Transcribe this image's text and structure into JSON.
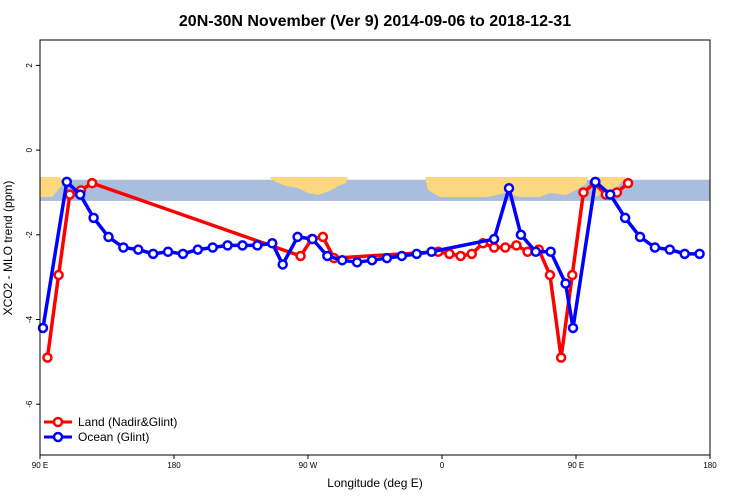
{
  "chart_data": {
    "type": "line",
    "title": "20N-30N November (Ver 9)   2014-09-06 to 2018-12-31",
    "xlabel": "Longitude (deg E)",
    "ylabel": "XCO2 - MLO trend (ppm)",
    "xlim": [
      90,
      540
    ],
    "ylim": [
      -7.2,
      2.6
    ],
    "x_ticks": [
      {
        "value": 90,
        "label": "90 E"
      },
      {
        "value": 180,
        "label": "180"
      },
      {
        "value": 270,
        "label": "90 W"
      },
      {
        "value": 360,
        "label": "0"
      },
      {
        "value": 450,
        "label": "90 E"
      },
      {
        "value": 540,
        "label": "180"
      }
    ],
    "y_ticks": [
      {
        "value": 2,
        "label": "2"
      },
      {
        "value": 0,
        "label": "0"
      },
      {
        "value": -2,
        "label": "-2"
      },
      {
        "value": -4,
        "label": "-4"
      },
      {
        "value": -6,
        "label": "-6"
      }
    ],
    "map_strip": {
      "y_top": -0.7,
      "y_bottom": -1.2,
      "ocean_color": "#a8bedc",
      "land_color": "#fcd77d"
    },
    "legend": {
      "position": "bottom-left"
    },
    "series": [
      {
        "name": "Land (Nadir&Glint)",
        "color": "#ff0000",
        "x": [
          95,
          102.5,
          110,
          117.5,
          125,
          265,
          272.5,
          280,
          287.5,
          357.5,
          365,
          372.5,
          380,
          387.5,
          395,
          402.5,
          410,
          417.5,
          425,
          432.5,
          440,
          447.5,
          455,
          462.5,
          470,
          477.5,
          485
        ],
        "y": [
          -4.9,
          -2.95,
          -1.05,
          -0.95,
          -0.78,
          -2.5,
          -2.1,
          -2.05,
          -2.55,
          -2.4,
          -2.45,
          -2.5,
          -2.45,
          -2.2,
          -2.3,
          -2.3,
          -2.25,
          -2.4,
          -2.35,
          -2.95,
          -4.9,
          -2.95,
          -1.0,
          -0.78,
          -1.05,
          -1.0,
          -0.78
        ]
      },
      {
        "name": "Ocean (Glint)",
        "color": "#0000ff",
        "x": [
          92,
          108,
          117,
          126,
          136,
          146,
          156,
          166,
          176,
          186,
          196,
          206,
          216,
          226,
          236,
          246,
          253,
          263,
          273,
          283,
          293,
          303,
          313,
          323,
          333,
          343,
          353,
          395,
          405,
          413,
          423,
          433,
          443,
          448,
          463,
          473,
          483,
          493,
          503,
          513,
          523,
          533
        ],
        "y": [
          -4.2,
          -0.75,
          -1.05,
          -1.6,
          -2.05,
          -2.3,
          -2.35,
          -2.45,
          -2.4,
          -2.45,
          -2.35,
          -2.3,
          -2.25,
          -2.25,
          -2.25,
          -2.2,
          -2.7,
          -2.05,
          -2.1,
          -2.5,
          -2.6,
          -2.65,
          -2.6,
          -2.55,
          -2.5,
          -2.45,
          -2.4,
          -2.1,
          -0.9,
          -2.0,
          -2.4,
          -2.4,
          -3.15,
          -4.2,
          -0.75,
          -1.05,
          -1.6,
          -2.05,
          -2.3,
          -2.35,
          -2.45,
          -2.45
        ]
      }
    ]
  }
}
